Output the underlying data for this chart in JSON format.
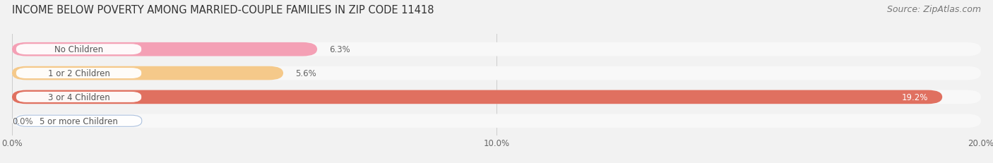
{
  "title": "INCOME BELOW POVERTY AMONG MARRIED-COUPLE FAMILIES IN ZIP CODE 11418",
  "source": "Source: ZipAtlas.com",
  "categories": [
    "No Children",
    "1 or 2 Children",
    "3 or 4 Children",
    "5 or more Children"
  ],
  "values": [
    6.3,
    5.6,
    19.2,
    0.0
  ],
  "bar_colors": [
    "#f4a0b5",
    "#f5c98a",
    "#e07060",
    "#a8bedd"
  ],
  "xlim": [
    0.0,
    20.0
  ],
  "xticks": [
    0.0,
    10.0,
    20.0
  ],
  "xtick_labels": [
    "0.0%",
    "10.0%",
    "20.0%"
  ],
  "bar_height": 0.58,
  "bar_gap": 0.42,
  "title_fontsize": 10.5,
  "source_fontsize": 9,
  "label_fontsize": 8.5,
  "value_fontsize": 8.5,
  "tick_fontsize": 8.5,
  "background_color": "#f2f2f2",
  "bar_bg_color": "#e2e2e2",
  "track_bg_color": "#f8f8f8",
  "value_inside_color": "#ffffff",
  "value_outside_color": "#666666",
  "label_text_color": "#555555",
  "title_color": "#333333",
  "source_color": "#777777",
  "grid_color": "#cccccc",
  "inside_threshold": 15.0
}
